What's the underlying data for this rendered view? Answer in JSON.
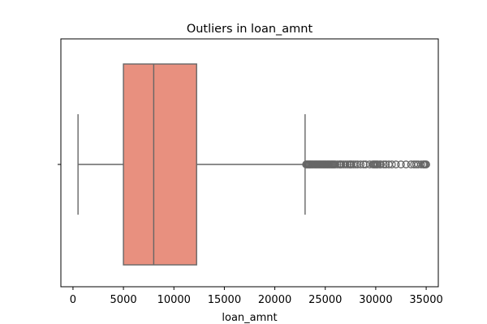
{
  "chart_data": {
    "type": "box",
    "title": "Outliers in loan_amnt",
    "xlabel": "loan_amnt",
    "ylabel": "",
    "orientation": "horizontal",
    "xlim": [
      -1200,
      36200
    ],
    "xticks": [
      0,
      5000,
      10000,
      15000,
      20000,
      25000,
      30000,
      35000
    ],
    "xtick_labels": [
      "0",
      "5000",
      "10000",
      "15000",
      "20000",
      "25000",
      "30000",
      "35000"
    ],
    "grid": false,
    "box": {
      "whisker_low": 500,
      "q1": 5000,
      "median": 8000,
      "q3": 12250,
      "whisker_high": 23000,
      "color": "#e8907f",
      "edge_color": "#666666"
    },
    "outliers": [
      23100,
      23200,
      23300,
      23400,
      23500,
      23600,
      23700,
      23800,
      23900,
      24000,
      24100,
      24200,
      24300,
      24400,
      24500,
      24600,
      24700,
      24800,
      24900,
      25000,
      25100,
      25200,
      25300,
      25400,
      25500,
      25600,
      25700,
      25800,
      25900,
      26000,
      26200,
      26400,
      26500,
      26600,
      26800,
      27000,
      27200,
      27400,
      27500,
      27600,
      27800,
      28000,
      28200,
      28500,
      28800,
      29000,
      29400,
      29700,
      29800,
      29900,
      30000,
      30100,
      30200,
      30400,
      30500,
      30800,
      31000,
      31300,
      31600,
      32000,
      32500,
      33000,
      33500,
      33800,
      34000,
      34200,
      34500,
      34700,
      34800,
      34900,
      35000
    ]
  }
}
